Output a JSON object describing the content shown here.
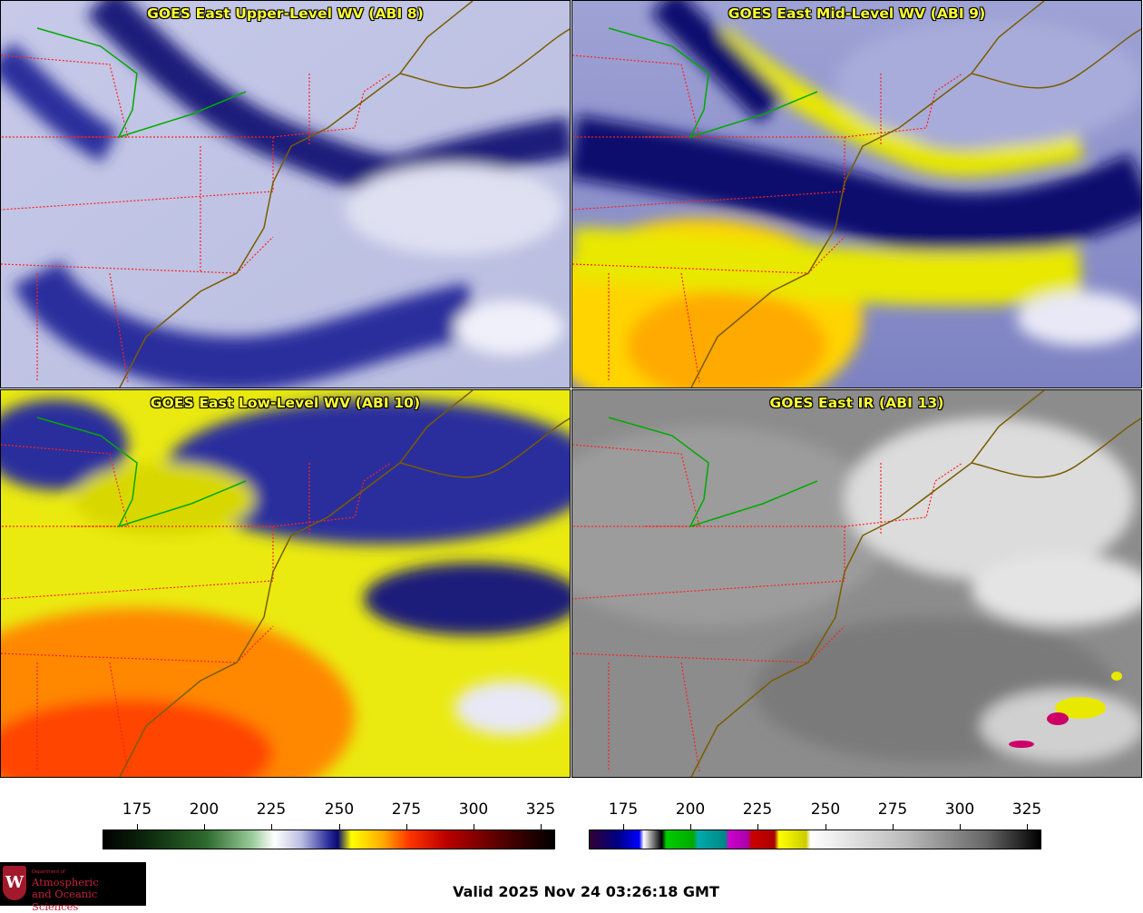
{
  "panels": [
    {
      "title": "GOES East Upper-Level WV (ABI 8)",
      "palette": "wv",
      "intensity": "upper"
    },
    {
      "title": "GOES East Mid-Level WV (ABI 9)",
      "palette": "wv",
      "intensity": "mid"
    },
    {
      "title": "GOES East Low-Level WV (ABI 10)",
      "palette": "wv",
      "intensity": "low"
    },
    {
      "title": "GOES East IR (ABI 13)",
      "palette": "ir",
      "intensity": "ir"
    }
  ],
  "colorbars": [
    {
      "name": "wv-colorbar",
      "ticks": [
        "175",
        "200",
        "225",
        "250",
        "275",
        "300",
        "325"
      ],
      "gradient": [
        "#000000",
        "#0c2a0c",
        "#2f6b2f",
        "#9acc9a",
        "#ffffff",
        "#b8bce0",
        "#2a2e9c",
        "#0a0a6e",
        "#ffff00",
        "#ffaa00",
        "#ff3300",
        "#bb0000",
        "#550000",
        "#000000"
      ]
    },
    {
      "name": "ir-colorbar",
      "ticks": [
        "175",
        "200",
        "225",
        "250",
        "275",
        "300",
        "325"
      ],
      "gradient": [
        "#330033",
        "#000080",
        "#0000ff",
        "#ffffff",
        "#000000",
        "#00cc00",
        "#00aaaa",
        "#cc00cc",
        "#cc0000",
        "#ffff00",
        "#ffffff",
        "#aaaaaa",
        "#000000"
      ]
    }
  ],
  "footer": {
    "valid_text": "Valid 2025 Nov 24 03:26:18 GMT",
    "logo": {
      "dept_label": "Department of",
      "line1": "Atmospheric",
      "line2": "and Oceanic Sciences",
      "seal_letter": "W"
    }
  },
  "colors": {
    "title_text": "#ffff33",
    "state_borders": "#ff2020",
    "coastlines": "#7a5c00",
    "great_lakes_border": "#00aa00"
  }
}
